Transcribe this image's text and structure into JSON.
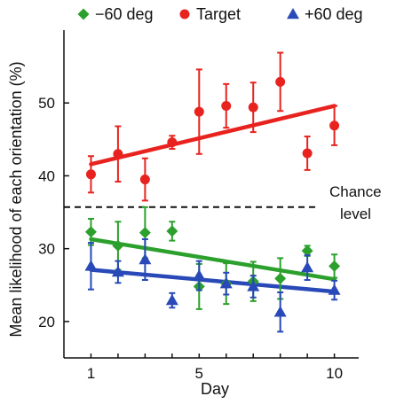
{
  "chart_data": {
    "type": "scatter",
    "title": "",
    "xlabel": "Day",
    "ylabel": "Mean likelihood of each orientation (%)",
    "xlim": [
      0,
      10.9
    ],
    "ylim": [
      15,
      60
    ],
    "xticks": [
      1,
      5,
      10
    ],
    "yticks": [
      20,
      30,
      40,
      50
    ],
    "legend_position": "top",
    "reference_line": {
      "y": 35.7,
      "style": "dashed",
      "label_line1": "Chance",
      "label_line2": "level"
    },
    "series": [
      {
        "name": "−60 deg",
        "color": "#2ca02c",
        "marker": "diamond",
        "x": [
          1,
          2,
          3,
          4,
          5,
          6,
          7,
          8,
          9,
          10
        ],
        "y": [
          32.3,
          30.4,
          32.2,
          32.4,
          24.8,
          25.2,
          25.5,
          25.9,
          29.7,
          27.6
        ],
        "err": [
          1.8,
          3.3,
          3.5,
          1.3,
          3.1,
          2.8,
          2.7,
          2.8,
          0.7,
          1.6
        ],
        "fit": [
          [
            1,
            31.3
          ],
          [
            10,
            25.8
          ]
        ]
      },
      {
        "name": "Target",
        "color": "#e8231f",
        "marker": "circle",
        "x": [
          1,
          2,
          3,
          4,
          5,
          6,
          7,
          8,
          9,
          10
        ],
        "y": [
          40.2,
          43.0,
          39.5,
          44.6,
          48.8,
          49.6,
          49.4,
          52.9,
          43.1,
          46.9
        ],
        "err": [
          2.5,
          3.8,
          2.9,
          0.9,
          5.8,
          3.0,
          3.4,
          4.0,
          2.3,
          2.7
        ],
        "fit": [
          [
            1,
            41.6
          ],
          [
            10,
            49.6
          ]
        ]
      },
      {
        "name": "+60 deg",
        "color": "#2849b7",
        "marker": "triangle",
        "x": [
          1,
          2,
          3,
          4,
          5,
          6,
          7,
          8,
          9,
          10
        ],
        "y": [
          27.6,
          26.8,
          28.5,
          22.9,
          26.3,
          25.2,
          24.8,
          21.3,
          27.4,
          24.3
        ],
        "err": [
          3.2,
          1.5,
          2.8,
          1.0,
          2.0,
          1.5,
          1.5,
          2.7,
          1.7,
          1.3
        ],
        "fit": [
          [
            1,
            27.1
          ],
          [
            10,
            24.1
          ]
        ]
      }
    ]
  }
}
